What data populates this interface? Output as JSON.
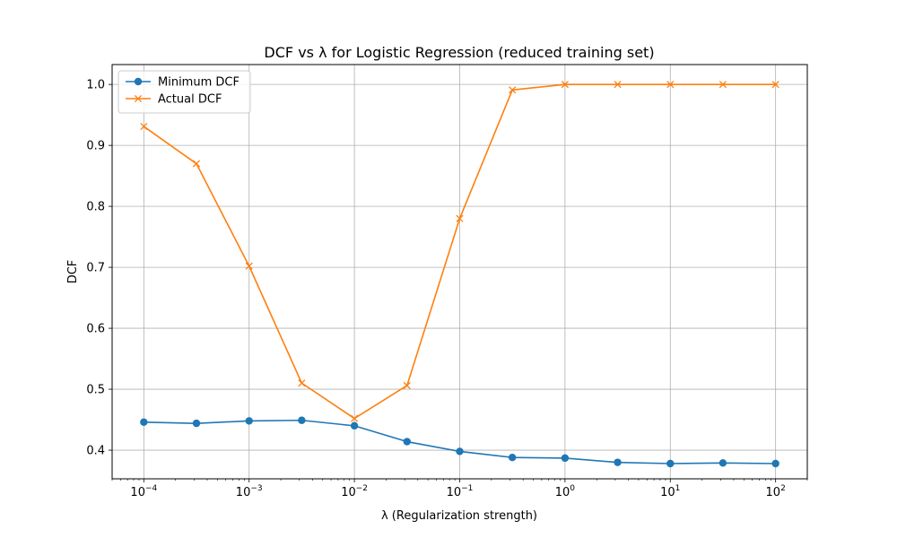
{
  "chart_data": {
    "type": "line",
    "title": "DCF vs λ for Logistic Regression (reduced training set)",
    "xlabel": "λ (Regularization strength)",
    "ylabel": "DCF",
    "x_scale": "log",
    "xlim": [
      5e-05,
      200
    ],
    "ylim": [
      0.353,
      1.0326
    ],
    "grid": true,
    "legend_position": "upper-left",
    "x": [
      0.0001,
      0.000316,
      0.001,
      0.00316,
      0.01,
      0.0316,
      0.1,
      0.316,
      1,
      3.16,
      10,
      31.6,
      100
    ],
    "x_ticks": [
      {
        "value": 0.0001,
        "base": "10",
        "exp": "−4"
      },
      {
        "value": 0.001,
        "base": "10",
        "exp": "−3"
      },
      {
        "value": 0.01,
        "base": "10",
        "exp": "−2"
      },
      {
        "value": 0.1,
        "base": "10",
        "exp": "−1"
      },
      {
        "value": 1,
        "base": "10",
        "exp": "0"
      },
      {
        "value": 10,
        "base": "10",
        "exp": "1"
      },
      {
        "value": 100,
        "base": "10",
        "exp": "2"
      }
    ],
    "y_ticks": [
      0.4,
      0.5,
      0.6,
      0.7,
      0.8,
      0.9,
      1.0
    ],
    "y_tick_labels": [
      "0.4",
      "0.5",
      "0.6",
      "0.7",
      "0.8",
      "0.9",
      "1.0"
    ],
    "series": [
      {
        "name": "Minimum DCF",
        "color": "#1f77b4",
        "marker": "circle",
        "values": [
          0.446,
          0.444,
          0.448,
          0.449,
          0.44,
          0.414,
          0.398,
          0.388,
          0.387,
          0.38,
          0.378,
          0.379,
          0.378
        ]
      },
      {
        "name": "Actual DCF",
        "color": "#ff7f0e",
        "marker": "x",
        "values": [
          0.931,
          0.87,
          0.702,
          0.51,
          0.452,
          0.506,
          0.78,
          0.991,
          1.0,
          1.0,
          1.0,
          1.0,
          1.0
        ]
      }
    ]
  }
}
